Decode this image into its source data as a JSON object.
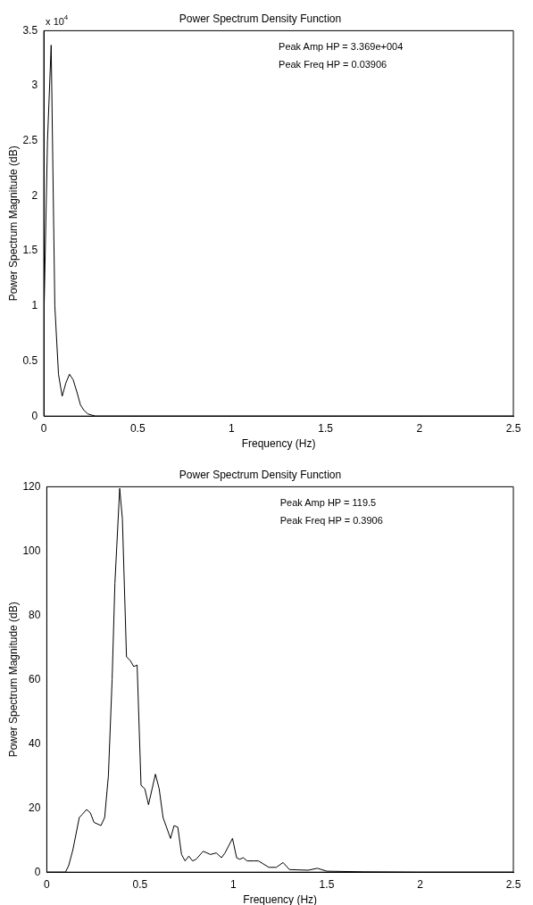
{
  "chart_data": [
    {
      "type": "line",
      "title": "Power Spectrum Density Function",
      "xlabel": "Frequency (Hz)",
      "ylabel": "Power Spectrum Magnitude (dB)",
      "annotations": [
        "x 10$^{4}$",
        "Peak Amp HP = 3.369e+004",
        "Peak Freq HP = 0.03906"
      ],
      "series": [
        {
          "color": "#000000",
          "x": [
            0,
            0.01953,
            0.03906,
            0.05859,
            0.07812,
            0.09766,
            0.1172,
            0.1367,
            0.1562,
            0.1758,
            0.1953,
            0.2148,
            0.2344,
            0.2539,
            0.2734,
            0.293,
            0.3125,
            0.3516,
            0.3906,
            0.4297,
            0.5,
            0.75,
            1,
            1.5,
            2,
            2.5
          ],
          "values": [
            0.85,
            2.5,
            3.369,
            1.0,
            0.38,
            0.18,
            0.3,
            0.38,
            0.33,
            0.22,
            0.1,
            0.05,
            0.02,
            0.01,
            0,
            0,
            0,
            0,
            0,
            0,
            0,
            0,
            0,
            0,
            0,
            0
          ]
        }
      ],
      "xlim": [
        0,
        2.5
      ],
      "xticks": [
        0,
        0.5,
        1,
        1.5,
        2,
        2.5
      ],
      "ylim": [
        0,
        3.5
      ],
      "yticks": [
        0,
        0.5,
        1,
        1.5,
        2,
        2.5,
        3,
        3.5
      ],
      "grid": false,
      "legend": false
    },
    {
      "type": "line",
      "title": "Power Spectrum Density Function",
      "xlabel": "Frequency (Hz)",
      "ylabel": "Power Spectrum Magnitude (dB)",
      "annotations": [
        "Peak Amp HP = 119.5",
        "Peak Freq HP = 0.3906"
      ],
      "series": [
        {
          "color": "#000000",
          "x": [
            0,
            0.05,
            0.1,
            0.117,
            0.14,
            0.174,
            0.19,
            0.213,
            0.233,
            0.253,
            0.29,
            0.31,
            0.33,
            0.35,
            0.365,
            0.3906,
            0.405,
            0.427,
            0.446,
            0.466,
            0.484,
            0.505,
            0.525,
            0.545,
            0.582,
            0.602,
            0.623,
            0.663,
            0.682,
            0.702,
            0.722,
            0.741,
            0.761,
            0.781,
            0.8,
            0.838,
            0.877,
            0.908,
            0.936,
            0.955,
            0.995,
            1.017,
            1.033,
            1.053,
            1.073,
            1.11,
            1.134,
            1.19,
            1.23,
            1.266,
            1.3,
            1.4,
            1.45,
            1.5,
            1.7,
            2,
            2.5
          ],
          "values": [
            0,
            0,
            0,
            2,
            7,
            17,
            18,
            19.5,
            18.5,
            15.5,
            14.5,
            17,
            30,
            60,
            90,
            119.5,
            110,
            67,
            66,
            64,
            64.5,
            27,
            26,
            21,
            30.5,
            26,
            17,
            10.5,
            14.5,
            14,
            5.5,
            3.5,
            5,
            3.5,
            4,
            6.5,
            5.5,
            6,
            4.5,
            6,
            10.5,
            4.5,
            4,
            4.5,
            3.5,
            3.5,
            3.5,
            1.5,
            1.5,
            3,
            0.8,
            0.6,
            1.2,
            0.3,
            0.1,
            0,
            0
          ]
        }
      ],
      "xlim": [
        0,
        2.5
      ],
      "xticks": [
        0,
        0.5,
        1,
        1.5,
        2,
        2.5
      ],
      "ylim": [
        0,
        120
      ],
      "yticks": [
        0,
        20,
        40,
        60,
        80,
        100,
        120
      ],
      "grid": false,
      "legend": false
    }
  ]
}
